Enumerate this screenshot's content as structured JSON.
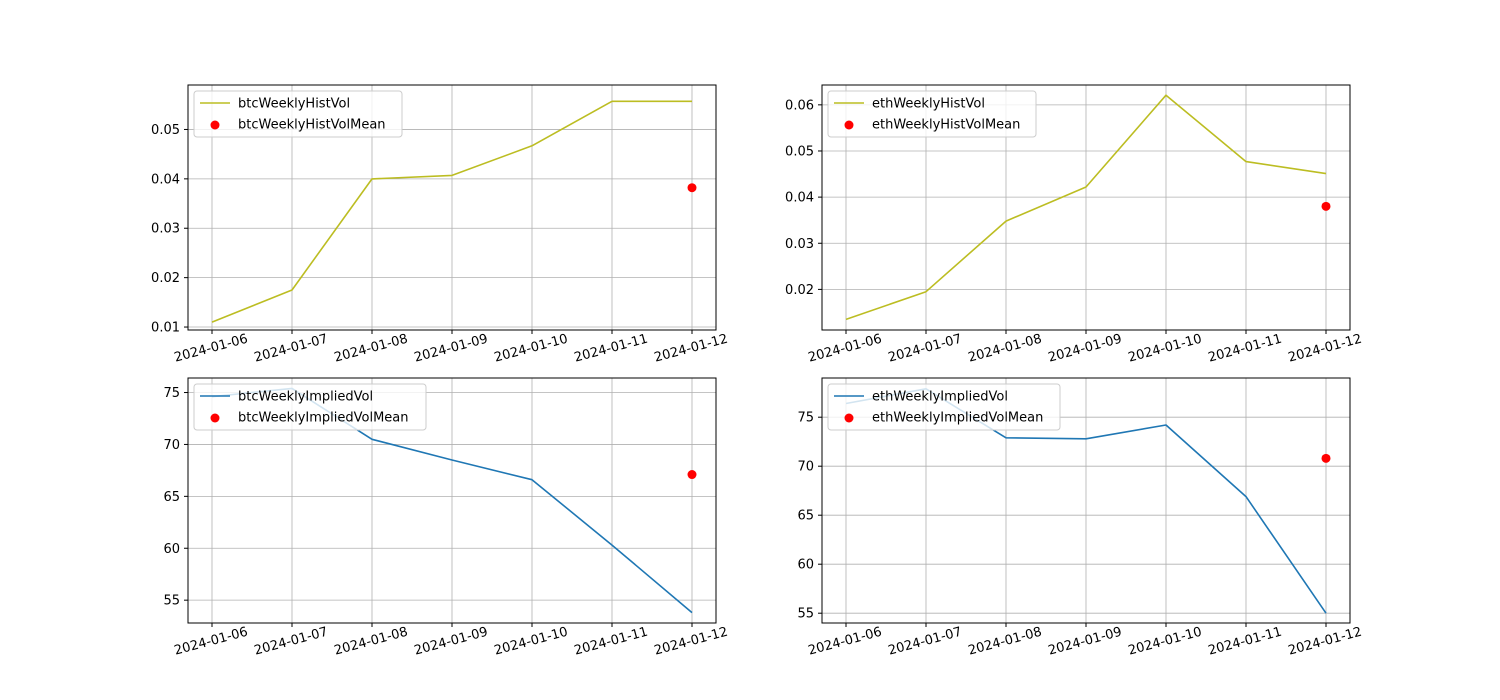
{
  "chart_data": [
    {
      "type": "line",
      "x": [
        "2024-01-06",
        "2024-01-07",
        "2024-01-08",
        "2024-01-09",
        "2024-01-10",
        "2024-01-11",
        "2024-01-12"
      ],
      "series": [
        {
          "name": "btcWeeklyHistVol",
          "kind": "line",
          "color": "#bcbd22",
          "values": [
            0.011,
            0.0175,
            0.04,
            0.0407,
            0.0467,
            0.0557,
            0.0557
          ]
        },
        {
          "name": "btcWeeklyHistVolMean",
          "kind": "scatter",
          "color": "#ff0000",
          "points": [
            {
              "x": "2024-01-12",
              "y": 0.0382
            }
          ]
        }
      ],
      "ylim": [
        0.0094,
        0.059
      ],
      "yticks": [
        0.01,
        0.02,
        0.03,
        0.04,
        0.05
      ],
      "ytick_labels": [
        "0.01",
        "0.02",
        "0.03",
        "0.04",
        "0.05"
      ],
      "grid": true,
      "legend": "upper-left"
    },
    {
      "type": "line",
      "x": [
        "2024-01-06",
        "2024-01-07",
        "2024-01-08",
        "2024-01-09",
        "2024-01-10",
        "2024-01-11",
        "2024-01-12"
      ],
      "series": [
        {
          "name": "ethWeeklyHistVol",
          "kind": "line",
          "color": "#bcbd22",
          "values": [
            0.0135,
            0.0195,
            0.0348,
            0.0422,
            0.0621,
            0.0477,
            0.0451
          ]
        },
        {
          "name": "ethWeeklyHistVolMean",
          "kind": "scatter",
          "color": "#ff0000",
          "points": [
            {
              "x": "2024-01-12",
              "y": 0.038
            }
          ]
        }
      ],
      "ylim": [
        0.0112,
        0.0643
      ],
      "yticks": [
        0.02,
        0.03,
        0.04,
        0.05,
        0.06
      ],
      "ytick_labels": [
        "0.02",
        "0.03",
        "0.04",
        "0.05",
        "0.06"
      ],
      "grid": true,
      "legend": "upper-left"
    },
    {
      "type": "line",
      "x": [
        "2024-01-06",
        "2024-01-07",
        "2024-01-08",
        "2024-01-09",
        "2024-01-10",
        "2024-01-11",
        "2024-01-12"
      ],
      "series": [
        {
          "name": "btcWeeklyImpliedVol",
          "kind": "line",
          "color": "#1f77b4",
          "values": [
            74.6,
            75.4,
            70.5,
            68.5,
            66.6,
            60.3,
            53.8
          ]
        },
        {
          "name": "btcWeeklyImpliedVolMean",
          "kind": "scatter",
          "color": "#ff0000",
          "points": [
            {
              "x": "2024-01-12",
              "y": 67.1
            }
          ]
        }
      ],
      "ylim": [
        52.8,
        76.4
      ],
      "yticks": [
        55,
        60,
        65,
        70,
        75
      ],
      "ytick_labels": [
        "55",
        "60",
        "65",
        "70",
        "75"
      ],
      "grid": true,
      "legend": "upper-left"
    },
    {
      "type": "line",
      "x": [
        "2024-01-06",
        "2024-01-07",
        "2024-01-08",
        "2024-01-09",
        "2024-01-10",
        "2024-01-11",
        "2024-01-12"
      ],
      "series": [
        {
          "name": "ethWeeklyImpliedVol",
          "kind": "line",
          "color": "#1f77b4",
          "values": [
            76.4,
            77.9,
            72.9,
            72.8,
            74.2,
            66.9,
            55.0
          ]
        },
        {
          "name": "ethWeeklyImpliedVolMean",
          "kind": "scatter",
          "color": "#ff0000",
          "points": [
            {
              "x": "2024-01-12",
              "y": 70.8
            }
          ]
        }
      ],
      "ylim": [
        54.0,
        79.0
      ],
      "yticks": [
        55,
        60,
        65,
        70,
        75
      ],
      "ytick_labels": [
        "55",
        "60",
        "65",
        "70",
        "75"
      ],
      "grid": true,
      "legend": "upper-left"
    }
  ]
}
